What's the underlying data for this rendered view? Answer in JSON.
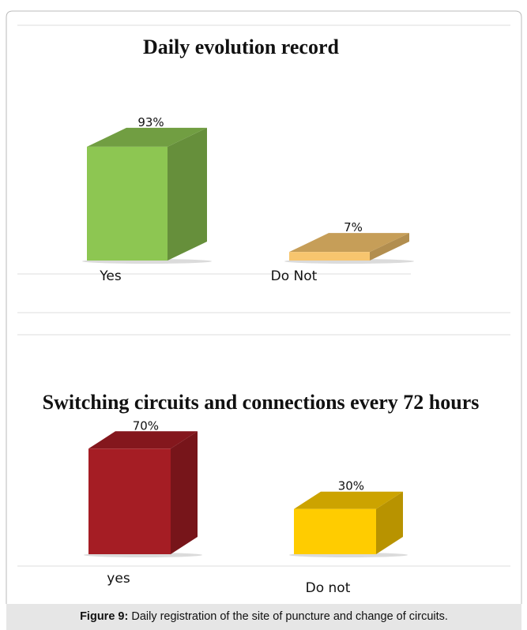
{
  "chart_data": [
    {
      "type": "bar3d",
      "title": "Daily evolution record",
      "categories": [
        "Yes",
        "Do Not"
      ],
      "values": [
        93,
        7
      ],
      "value_labels": [
        "93%",
        "7%"
      ],
      "colors": [
        "#8dc652",
        "#f7c56e"
      ]
    },
    {
      "type": "bar3d",
      "title": "Switching circuits and connections every 72 hours",
      "categories": [
        "yes",
        "Do not"
      ],
      "values": [
        70,
        30
      ],
      "value_labels": [
        "70%",
        "30%"
      ],
      "colors": [
        "#a51d24",
        "#ffcc00"
      ]
    }
  ],
  "caption": {
    "label": "Figure 9:",
    "text": "Daily registration of the site of puncture and change of circuits."
  }
}
